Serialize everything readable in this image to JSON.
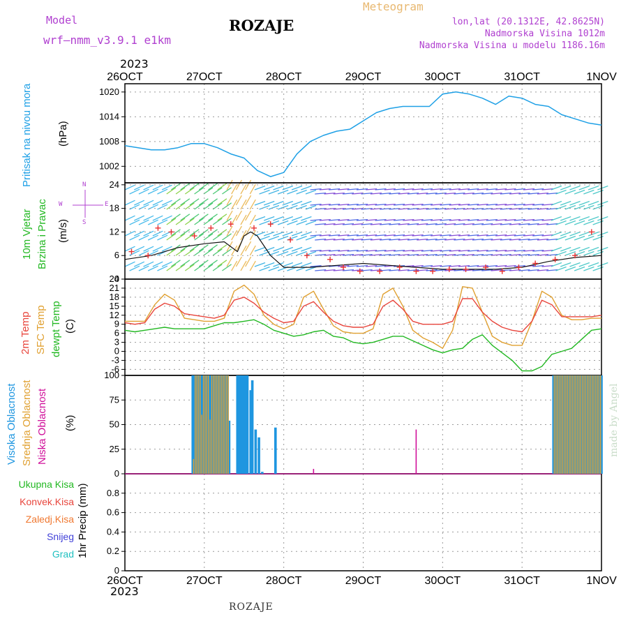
{
  "header": {
    "model_label": "Model",
    "model_name": "wrf—nmm_v3.9.1  e1km",
    "station_title": "ROZAJE",
    "meteogram_label": "Meteogram",
    "lonlat": "lon,lat (20.1312E, 42.8625N)",
    "elevation": "Nadmorska Visina 1012m",
    "model_elevation": "Nadmorska Visina u modelu 1186.16m",
    "year_top": "2023",
    "year_bottom": "2023",
    "footer_station": "ROZAJE",
    "watermark": "made by Angel"
  },
  "colors": {
    "pressure": "#1ea0e6",
    "temp2m": "#e8453c",
    "sfc_temp": "#e0a030",
    "dewpt": "#22b822",
    "cloud_high": "#1e96e0",
    "cloud_mid": "#e0a030",
    "cloud_low": "#d0109a",
    "title_purple": "#b040d0",
    "grid": "#999999"
  },
  "legend_labels": {
    "pressure": "Pritisak na nivou mora",
    "pressure_unit": "(hPa)",
    "wind1": "10m Vjetar",
    "wind2": "Brzina i Pravac",
    "wind_unit": "(m/s)",
    "compass_n": "N",
    "compass_w": "W",
    "compass_e": "E",
    "compass_s": "S",
    "temp2m": "2m Temp",
    "sfc": "SFC Temp",
    "dewpt": "dewpt Temp",
    "temp_unit": "(C)",
    "cloud_high": "Visoka Oblacnost",
    "cloud_mid": "Srednja Oblacnost",
    "cloud_low": "Niska Oblacnost",
    "cloud_unit": "(%)",
    "precip_total": "Ukupna Kisa",
    "precip_conv": "Konvek.Kisa",
    "precip_frz": "Zaledj.Kisa",
    "precip_snow": "Snijeg",
    "precip_grad": "Grad",
    "precip_unit": "1hr Precip (mm)"
  },
  "chart_data": {
    "type": "meteogram",
    "x_ticks": [
      "26OCT",
      "27OCT",
      "28OCT",
      "29OCT",
      "30OCT",
      "31OCT",
      "1NOV"
    ],
    "x_hours_total": 144,
    "panels": {
      "pressure": {
        "ylabel": "(hPa)",
        "yticks": [
          1002,
          1008,
          1014,
          1020
        ],
        "ylim": [
          998,
          1022
        ],
        "hours": [
          0,
          4,
          8,
          12,
          16,
          20,
          24,
          28,
          32,
          36,
          40,
          44,
          48,
          52,
          56,
          60,
          64,
          68,
          72,
          76,
          80,
          84,
          88,
          92,
          96,
          100,
          104,
          108,
          112,
          116,
          120,
          124,
          128,
          132,
          136,
          140,
          144
        ],
        "values": [
          1007,
          1006.5,
          1006,
          1006,
          1006.5,
          1007.5,
          1007.5,
          1006.5,
          1005,
          1004,
          1001,
          999.5,
          1000.5,
          1005,
          1008,
          1009.5,
          1010.5,
          1011,
          1013,
          1015,
          1016,
          1016.5,
          1016.5,
          1016.5,
          1019.5,
          1020,
          1019.5,
          1018.5,
          1017,
          1019,
          1018.5,
          1017,
          1016.5,
          1014.5,
          1013.5,
          1012.5,
          1012
        ]
      },
      "wind": {
        "ylabel": "(m/s)",
        "yticks": [
          0,
          6,
          12,
          18,
          24
        ],
        "ylim": [
          0,
          24.5
        ],
        "speed_hours": [
          0,
          8,
          16,
          24,
          30,
          34,
          36,
          38,
          40,
          44,
          48,
          56,
          64,
          72,
          80,
          88,
          96,
          104,
          112,
          120,
          128,
          136,
          144
        ],
        "speed_values": [
          5,
          6,
          8,
          9,
          9.5,
          7,
          11,
          12,
          11,
          6,
          3,
          3,
          3.5,
          4,
          3.5,
          3,
          2.5,
          2.5,
          2.5,
          3,
          4.5,
          5.5,
          6
        ],
        "gust_hours": [
          2,
          7,
          10,
          14,
          21,
          26,
          32,
          39,
          44,
          50,
          55,
          62,
          66,
          71,
          77,
          83,
          88,
          93,
          98,
          103,
          109,
          114,
          119,
          124,
          130,
          136,
          141
        ],
        "gust_values": [
          7,
          6,
          13,
          12,
          11,
          13,
          14,
          13,
          14,
          10,
          6,
          5,
          3,
          2,
          2,
          3,
          2,
          2,
          2.5,
          2.5,
          3,
          2,
          3,
          4,
          5,
          6,
          12
        ]
      },
      "temperature": {
        "ylabel": "(C)",
        "yticks": [
          -6,
          -3,
          0,
          3,
          6,
          9,
          12,
          15,
          18,
          21,
          24
        ],
        "ylim": [
          -8,
          24
        ],
        "hours": [
          0,
          3,
          6,
          9,
          12,
          15,
          18,
          21,
          24,
          27,
          30,
          33,
          36,
          39,
          42,
          45,
          48,
          51,
          54,
          57,
          60,
          63,
          66,
          69,
          72,
          75,
          78,
          81,
          84,
          87,
          90,
          93,
          96,
          99,
          102,
          105,
          108,
          111,
          114,
          117,
          120,
          123,
          126,
          129,
          132,
          135,
          138,
          141,
          144
        ],
        "temp2m": [
          9.5,
          9,
          9.5,
          14,
          16,
          15,
          12.5,
          12,
          11.5,
          11,
          12,
          17,
          18,
          16,
          13,
          11,
          9.5,
          10,
          15,
          16.5,
          13,
          10,
          8.5,
          8,
          8,
          9,
          15,
          17,
          14,
          10,
          9,
          9,
          9,
          10,
          17.5,
          17.5,
          13,
          10,
          8,
          7,
          6.5,
          10,
          17,
          15.5,
          11.5,
          11.5,
          11.5,
          11.5,
          12
        ],
        "sfc_temp": [
          10,
          10,
          10,
          15.5,
          19,
          17,
          11,
          10.5,
          10,
          10,
          11,
          20,
          22,
          19,
          12,
          9,
          7.5,
          9,
          18,
          20,
          14,
          8.5,
          6.5,
          6,
          6,
          7.5,
          19,
          21,
          15,
          7,
          4.5,
          3,
          1,
          7,
          21.5,
          21,
          13,
          5,
          3,
          2,
          2,
          10,
          20,
          18,
          12,
          10.5,
          10.5,
          11,
          11
        ],
        "dewpt": [
          7,
          6.5,
          7,
          7.5,
          8,
          7.5,
          7.5,
          7.5,
          7.5,
          8.5,
          9.5,
          9.5,
          10,
          10.5,
          9,
          7,
          6,
          5,
          5.5,
          6.5,
          7,
          5,
          4.5,
          3,
          2.5,
          3,
          4,
          5,
          5,
          3.5,
          2,
          0.5,
          -0.5,
          0.5,
          1,
          4,
          5.5,
          2,
          -0.5,
          -3,
          -6.5,
          -6.5,
          -5,
          -1,
          0,
          1,
          4,
          7,
          7.5
        ]
      },
      "clouds": {
        "ylabel": "(%)",
        "yticks": [
          0,
          25,
          50,
          75,
          100
        ],
        "ylim": [
          0,
          100
        ],
        "high_hours": [
          20.5,
          21,
          21.5,
          22,
          22.5,
          23,
          23.5,
          24,
          24.5,
          25,
          25.5,
          26,
          26.5,
          27,
          27.5,
          28,
          28.5,
          29,
          29.5,
          30,
          30.5,
          31,
          31.5,
          34,
          34.5,
          35,
          35.5,
          36,
          36.5,
          37,
          38,
          38.5,
          39.5,
          40.5,
          41.5,
          45.5,
          46.5,
          129.5,
          130,
          130.5,
          131,
          131.5,
          132,
          132.5,
          133,
          133.5,
          134,
          134.5,
          135,
          135.5,
          136,
          136.5,
          137,
          137.5,
          138,
          138.5,
          139,
          139.5,
          140,
          140.5,
          141,
          141.5,
          142,
          142.5,
          143,
          143.5,
          144
        ],
        "high_values": [
          100,
          100,
          100,
          100,
          100,
          100,
          100,
          100,
          100,
          100,
          100,
          100,
          100,
          100,
          100,
          100,
          100,
          100,
          100,
          100,
          100,
          100,
          54,
          100,
          100,
          100,
          100,
          100,
          100,
          100,
          85,
          95,
          45,
          37,
          2,
          47,
          0,
          100,
          100,
          100,
          100,
          100,
          100,
          100,
          100,
          100,
          100,
          100,
          100,
          100,
          100,
          100,
          100,
          100,
          100,
          100,
          100,
          100,
          100,
          100,
          100,
          100,
          100,
          100,
          100,
          100,
          100
        ],
        "mid_hours": [
          20.5,
          21,
          21.5,
          22,
          22.5,
          23,
          23.5,
          24,
          24.5,
          25,
          25.5,
          26,
          26.5,
          27,
          27.5,
          28,
          28.5,
          29,
          29.5,
          30,
          30.5,
          31,
          129.5,
          130,
          130.5,
          131,
          131.5,
          132,
          132.5,
          133,
          133.5,
          134,
          134.5,
          135,
          135.5,
          136,
          136.5,
          137,
          137.5,
          138,
          138.5,
          139,
          139.5,
          140,
          140.5,
          141,
          141.5,
          142,
          142.5,
          143,
          143.5
        ],
        "mid_values": [
          15,
          100,
          100,
          100,
          100,
          60,
          100,
          100,
          100,
          100,
          55,
          100,
          100,
          100,
          100,
          100,
          100,
          100,
          100,
          100,
          100,
          100,
          100,
          100,
          100,
          100,
          100,
          100,
          100,
          100,
          100,
          100,
          100,
          100,
          100,
          100,
          100,
          100,
          100,
          100,
          100,
          100,
          100,
          100,
          100,
          100,
          100,
          100,
          100,
          100,
          100
        ],
        "low_hours": [
          57,
          88
        ],
        "low_values": [
          5,
          45
        ]
      },
      "precip": {
        "ylabel": "1hr Precip (mm)",
        "yticks": [
          0,
          0.2,
          0.4,
          0.6,
          0.8
        ],
        "ylim": [
          0,
          1.0
        ],
        "values": []
      }
    }
  }
}
